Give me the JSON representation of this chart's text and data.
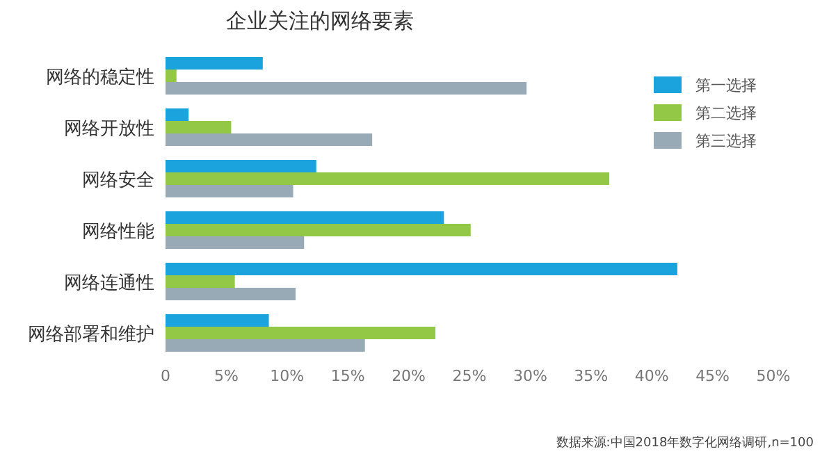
{
  "chart_data": {
    "type": "bar",
    "orientation": "horizontal",
    "title": "企业关注的网络要素",
    "categories": [
      "网络的稳定性",
      "网络开放性",
      "网络安全",
      "网络性能",
      "网络连通性",
      "网络部署和维护"
    ],
    "series": [
      {
        "name": "第一选择",
        "color": "#1aa3dc",
        "values": [
          8.0,
          1.9,
          12.4,
          22.9,
          42.1,
          8.5
        ]
      },
      {
        "name": "第二选择",
        "color": "#92c845",
        "values": [
          0.9,
          5.4,
          36.5,
          25.1,
          5.7,
          22.2
        ]
      },
      {
        "name": "第三选择",
        "color": "#98aab6",
        "values": [
          29.7,
          17.0,
          10.5,
          11.4,
          10.7,
          16.4
        ]
      }
    ],
    "xlim": [
      0,
      50
    ],
    "xticks": [
      {
        "value": 0,
        "label": "0"
      },
      {
        "value": 5,
        "label": "5%"
      },
      {
        "value": 10,
        "label": "10%"
      },
      {
        "value": 15,
        "label": "15%"
      },
      {
        "value": 20,
        "label": "20%"
      },
      {
        "value": 25,
        "label": "25%"
      },
      {
        "value": 30,
        "label": "30%"
      },
      {
        "value": 35,
        "label": "35%"
      },
      {
        "value": 40,
        "label": "40%"
      },
      {
        "value": 45,
        "label": "45%"
      },
      {
        "value": 50,
        "label": "50%"
      }
    ],
    "legend": "top right",
    "grid": false,
    "annotations": [
      "数据来源:中国2018年数字化网络调研,n=100"
    ]
  }
}
